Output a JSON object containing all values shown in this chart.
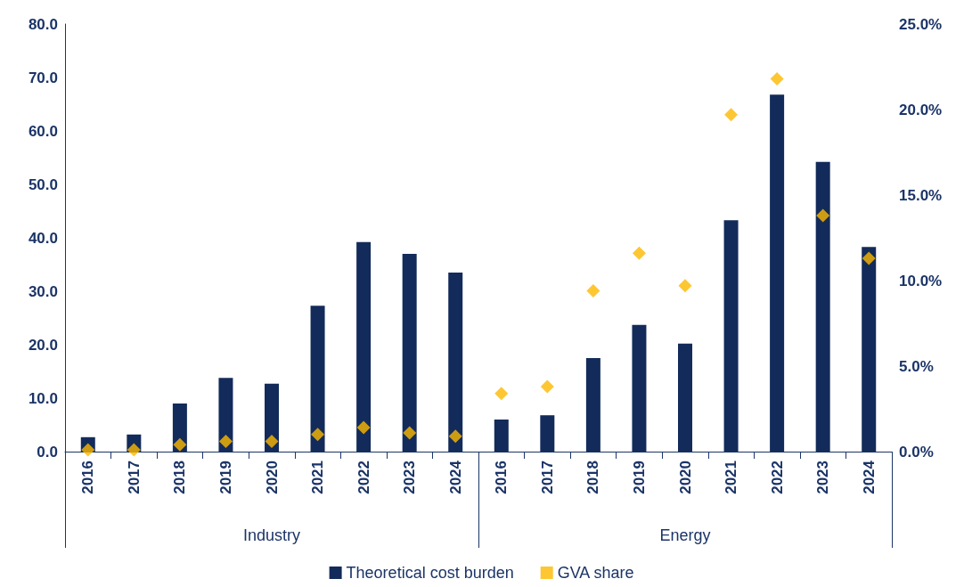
{
  "chart_data": {
    "type": "bar",
    "categories": [
      "2016",
      "2017",
      "2018",
      "2019",
      "2020",
      "2021",
      "2022",
      "2023",
      "2024",
      "2016",
      "2017",
      "2018",
      "2019",
      "2020",
      "2021",
      "2022",
      "2023",
      "2024"
    ],
    "annotations": [
      "Industry",
      "Energy"
    ],
    "series": [
      {
        "name": "Theoretical cost burden",
        "color": "#132b5a",
        "values": [
          2.7,
          3.2,
          9.0,
          13.8,
          12.7,
          27.3,
          39.2,
          37.0,
          33.5,
          6.0,
          6.8,
          17.5,
          23.7,
          20.2,
          43.3,
          66.8,
          54.2,
          38.3
        ]
      },
      {
        "name": "GVA share",
        "type": "scatter",
        "axis": "y2",
        "marker": "diamond",
        "color": "#fcb900",
        "values": [
          0.1,
          0.1,
          0.4,
          0.6,
          0.6,
          1.0,
          1.4,
          1.1,
          0.9,
          3.4,
          3.8,
          9.4,
          11.6,
          9.7,
          19.7,
          21.8,
          13.8,
          11.3
        ]
      }
    ],
    "ylim": [
      0,
      80
    ],
    "yticks": [
      {
        "value": 0,
        "label": "0.0"
      },
      {
        "value": 10,
        "label": "10.0"
      },
      {
        "value": 20,
        "label": "20.0"
      },
      {
        "value": 30,
        "label": "30.0"
      },
      {
        "value": 40,
        "label": "40.0"
      },
      {
        "value": 50,
        "label": "50.0"
      },
      {
        "value": 60,
        "label": "60.0"
      },
      {
        "value": 70,
        "label": "70.0"
      },
      {
        "value": 80,
        "label": "80.0"
      }
    ],
    "y2lim": [
      0,
      25
    ],
    "y2ticks": [
      {
        "value": 0,
        "label": "0.0%"
      },
      {
        "value": 5,
        "label": "5.0%"
      },
      {
        "value": 10,
        "label": "10.0%"
      },
      {
        "value": 15,
        "label": "15.0%"
      },
      {
        "value": 20,
        "label": "20.0%"
      },
      {
        "value": 25,
        "label": "25.0%"
      }
    ],
    "grid": false,
    "legend": "bottom"
  }
}
